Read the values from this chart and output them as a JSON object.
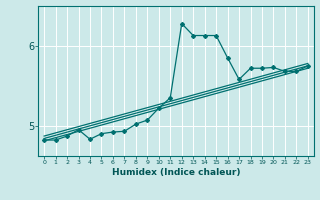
{
  "xlabel": "Humidex (Indice chaleur)",
  "ylabel": "",
  "bg_color": "#cce9e9",
  "grid_color": "#ffffff",
  "line_color": "#007070",
  "marker_color": "#007070",
  "x_ticks": [
    0,
    1,
    2,
    3,
    4,
    5,
    6,
    7,
    8,
    9,
    10,
    11,
    12,
    13,
    14,
    15,
    16,
    17,
    18,
    19,
    20,
    21,
    22,
    23
  ],
  "y_ticks": [
    5,
    6
  ],
  "ylim": [
    4.62,
    6.5
  ],
  "xlim": [
    -0.5,
    23.5
  ],
  "series": {
    "line1_x": [
      0,
      1,
      2,
      3,
      4,
      5,
      6,
      7,
      8,
      9,
      10,
      11,
      12,
      13,
      14,
      15,
      16,
      17,
      18,
      19,
      20,
      21,
      22,
      23
    ],
    "line1_y": [
      4.82,
      4.82,
      4.87,
      4.95,
      4.83,
      4.9,
      4.92,
      4.93,
      5.02,
      5.07,
      5.22,
      5.35,
      6.28,
      6.13,
      6.13,
      6.13,
      5.85,
      5.58,
      5.72,
      5.72,
      5.73,
      5.68,
      5.68,
      5.75
    ],
    "line2_x": [
      0,
      23
    ],
    "line2_y": [
      4.84,
      5.75
    ],
    "line3_x": [
      0,
      23
    ],
    "line3_y": [
      4.87,
      5.78
    ],
    "line4_x": [
      0,
      23
    ],
    "line4_y": [
      4.81,
      5.72
    ]
  }
}
